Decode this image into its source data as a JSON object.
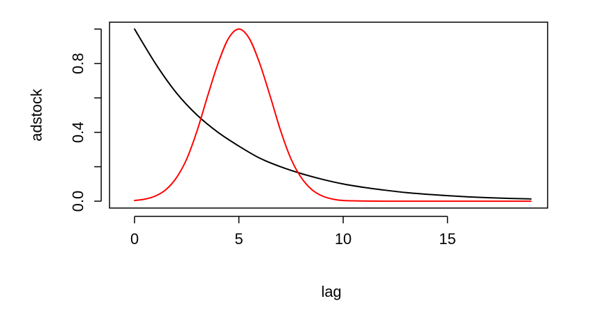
{
  "chart_data": {
    "type": "line",
    "xlabel": "lag",
    "ylabel": "adstock",
    "xlim": [
      -1.2,
      19.8
    ],
    "ylim": [
      -0.04,
      1.04
    ],
    "x_ticks": [
      0,
      5,
      10,
      15
    ],
    "y_ticks": [
      0.0,
      0.2,
      0.4,
      0.6,
      0.8,
      1.0
    ],
    "y_tick_labels": [
      {
        "value": 0.0,
        "label": "0.0"
      },
      {
        "value": 0.4,
        "label": "0.4"
      },
      {
        "value": 0.8,
        "label": "0.8"
      }
    ],
    "grid": false,
    "series": [
      {
        "color": "#000000",
        "x": [
          0,
          1,
          2,
          3,
          4,
          5,
          6,
          7,
          8,
          9,
          10,
          11,
          12,
          13,
          14,
          15,
          16,
          17,
          18,
          19
        ],
        "values": [
          1.0,
          0.8,
          0.63,
          0.5,
          0.4,
          0.32,
          0.25,
          0.2,
          0.16,
          0.127,
          0.1,
          0.08,
          0.064,
          0.05,
          0.04,
          0.032,
          0.025,
          0.02,
          0.016,
          0.013
        ]
      },
      {
        "color": "#ff0000",
        "x": [
          0,
          0.5,
          1,
          1.5,
          2,
          2.5,
          3,
          3.5,
          4,
          4.5,
          5,
          5.5,
          6,
          6.5,
          7,
          7.5,
          8,
          8.5,
          9,
          9.5,
          10,
          11,
          12,
          13,
          14,
          15,
          16,
          17,
          18,
          19
        ],
        "values": [
          0.004,
          0.012,
          0.03,
          0.067,
          0.135,
          0.245,
          0.41,
          0.61,
          0.8,
          0.945,
          1.0,
          0.945,
          0.8,
          0.61,
          0.41,
          0.245,
          0.135,
          0.067,
          0.03,
          0.012,
          0.004,
          0.001,
          0,
          0,
          0,
          0,
          0,
          0,
          0,
          0
        ]
      }
    ]
  }
}
